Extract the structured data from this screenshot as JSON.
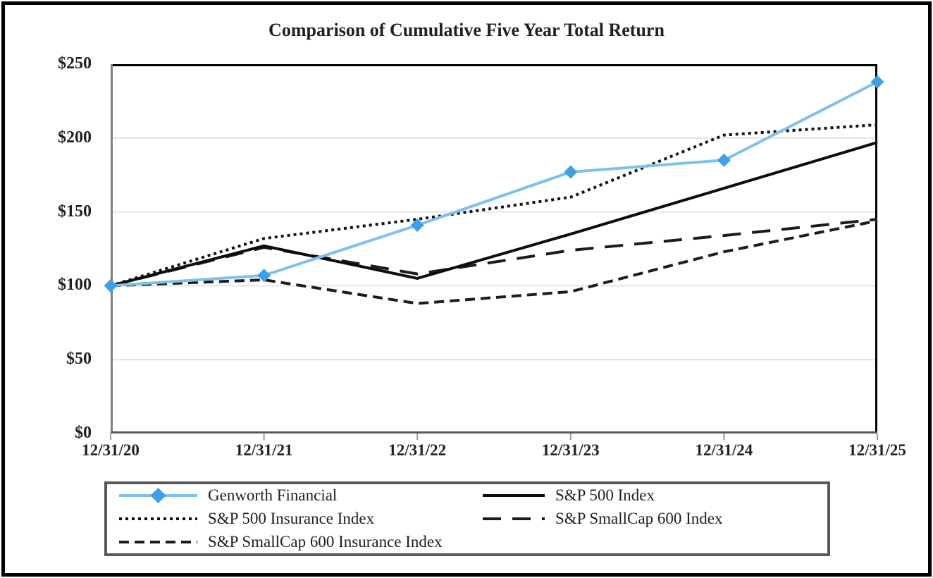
{
  "chart_data": {
    "type": "line",
    "title": "Comparison of Cumulative Five Year Total Return",
    "categories": [
      "12/31/20",
      "12/31/21",
      "12/31/22",
      "12/31/23",
      "12/31/24",
      "12/31/25"
    ],
    "y_ticks": [
      "$0",
      "$50",
      "$100",
      "$150",
      "$200",
      "$250"
    ],
    "ylim": [
      0,
      250
    ],
    "grid": "horizontal-only",
    "legend_position": "bottom",
    "plot_border_color": "#000000",
    "axis_line_color": "#808080",
    "gridline_color": "#e4e4e4",
    "series": [
      {
        "name": "Genworth Financial",
        "values": [
          100,
          107,
          141,
          177,
          185,
          238
        ],
        "color": "#7ec1ee",
        "marker": "diamond",
        "marker_color": "#3ea0e8",
        "dash": "solid",
        "width": 4
      },
      {
        "name": "S&P 500 Index",
        "values": [
          100,
          127,
          105,
          135,
          166,
          197
        ],
        "color": "#0d0d0d",
        "dash": "solid",
        "width": 4
      },
      {
        "name": "S&P 500 Insurance Index",
        "values": [
          100,
          132,
          145,
          160,
          202,
          209
        ],
        "color": "#111111",
        "dash": "dotted",
        "width": 4
      },
      {
        "name": "S&P SmallCap 600 Index",
        "values": [
          100,
          126,
          108,
          124,
          134,
          145
        ],
        "color": "#1c1c1c",
        "dash": "longdash",
        "width": 4
      },
      {
        "name": "S&P SmallCap 600 Insurance Index",
        "values": [
          100,
          104,
          88,
          96,
          123,
          144
        ],
        "color": "#1c1c1c",
        "dash": "shortdash",
        "width": 4
      }
    ]
  }
}
